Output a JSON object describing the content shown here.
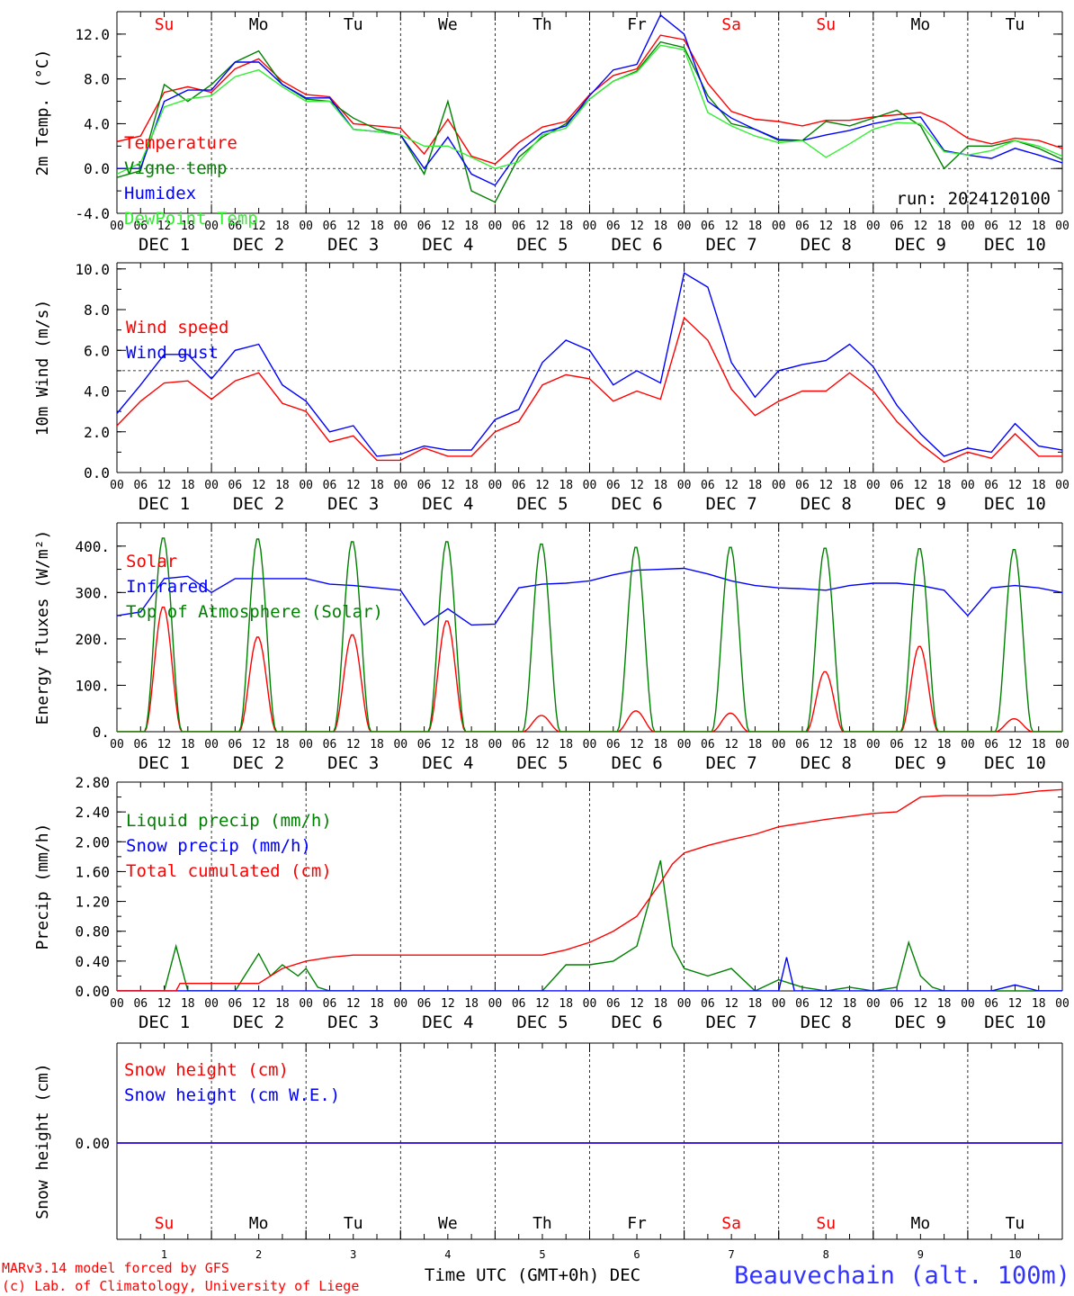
{
  "run_label": "run: 2024120100",
  "footer": {
    "model": "MARv3.14 model forced by GFS",
    "copyright": "(c) Lab. of Climatology, University of Liege",
    "xlabel": "Time UTC (GMT+0h) DEC",
    "station": "Beauvechain (alt. 100m)"
  },
  "x_axis": {
    "hour_ticks": [
      "00",
      "06",
      "12",
      "18"
    ],
    "date_labels": [
      "DEC  1",
      "DEC  2",
      "DEC  3",
      "DEC  4",
      "DEC  5",
      "DEC  6",
      "DEC  7",
      "DEC  8",
      "DEC  9",
      "DEC 10"
    ],
    "weekdays": [
      "Su",
      "Mo",
      "Tu",
      "We",
      "Th",
      "Fr",
      "Sa",
      "Su",
      "Mo",
      "Tu"
    ],
    "weekend_color": "#ff0000",
    "weekday_color": "#000000",
    "day_numbers": [
      "1",
      "2",
      "3",
      "4",
      "5",
      "6",
      "7",
      "8",
      "9",
      "10"
    ],
    "start": "2024-12-01 00:00 UTC",
    "end": "2024-12-11 00:00 UTC"
  },
  "chart_data": [
    {
      "type": "line",
      "ylabel": "2m Temp. (°C)",
      "ylim": [
        -4,
        14
      ],
      "yticks": [
        "-4.0",
        "0.0",
        "4.0",
        "8.0",
        "12.0"
      ],
      "ref_line": 0,
      "series": [
        {
          "name": "Temperature",
          "color": "#ff0000",
          "x": [
            0,
            6,
            12,
            18,
            24,
            30,
            36,
            42,
            48,
            54,
            60,
            66,
            72,
            78,
            84,
            90,
            96,
            102,
            108,
            114,
            120,
            126,
            132,
            138,
            144,
            150,
            156,
            162,
            168,
            174,
            180,
            186,
            192,
            198,
            204,
            210,
            216,
            222,
            228,
            234,
            240
          ],
          "y": [
            2.4,
            2.9,
            6.8,
            7.3,
            6.8,
            8.9,
            9.8,
            7.8,
            6.6,
            6.4,
            4.0,
            3.8,
            3.6,
            1.3,
            4.4,
            1.1,
            0.4,
            2.3,
            3.7,
            4.2,
            6.6,
            8.3,
            8.9,
            11.9,
            11.5,
            7.6,
            5.1,
            4.4,
            4.2,
            3.8,
            4.3,
            4.3,
            4.6,
            4.8,
            5.0,
            4.1,
            2.7,
            2.2,
            2.7,
            2.5,
            1.8
          ]
        },
        {
          "name": "Vigne temp",
          "color": "#008000",
          "x": [
            0,
            6,
            12,
            18,
            24,
            30,
            36,
            42,
            48,
            54,
            60,
            66,
            72,
            78,
            84,
            90,
            96,
            102,
            108,
            114,
            120,
            126,
            132,
            138,
            144,
            150,
            156,
            162,
            168,
            174,
            180,
            186,
            192,
            198,
            204,
            210,
            216,
            222,
            228,
            234,
            240
          ],
          "y": [
            -0.8,
            -0.2,
            7.5,
            6.0,
            7.5,
            9.5,
            10.5,
            7.5,
            6.2,
            6.0,
            4.5,
            3.5,
            3.0,
            -0.5,
            6.0,
            -2.0,
            -3.0,
            1.0,
            2.8,
            4.0,
            6.2,
            7.8,
            8.7,
            11.3,
            10.8,
            6.5,
            4.0,
            3.5,
            2.5,
            2.5,
            4.2,
            3.8,
            4.5,
            5.2,
            3.8,
            0.0,
            2.0,
            2.0,
            2.5,
            1.8,
            0.8
          ]
        },
        {
          "name": "Humidex",
          "color": "#0000ff",
          "x": [
            0,
            6,
            12,
            18,
            24,
            30,
            36,
            42,
            48,
            54,
            60,
            66,
            72,
            78,
            84,
            90,
            96,
            102,
            108,
            114,
            120,
            126,
            132,
            138,
            144,
            150,
            156,
            162,
            168,
            174,
            180,
            186,
            192,
            198,
            204,
            210,
            216,
            222,
            228,
            234,
            240
          ],
          "y": [
            0.0,
            0.0,
            6.0,
            7.0,
            7.0,
            9.5,
            9.5,
            7.5,
            6.3,
            6.3,
            3.5,
            3.3,
            3.0,
            0.0,
            2.8,
            -0.5,
            -1.5,
            1.5,
            3.2,
            3.8,
            6.5,
            8.8,
            9.3,
            13.7,
            12.0,
            6.0,
            4.5,
            3.5,
            2.6,
            2.5,
            3.0,
            3.4,
            4.0,
            4.4,
            4.6,
            1.6,
            1.2,
            0.9,
            1.8,
            1.2,
            0.5
          ]
        },
        {
          "name": "DewPoint Temp",
          "color": "#33ee33",
          "x": [
            0,
            6,
            12,
            18,
            24,
            30,
            36,
            42,
            48,
            54,
            60,
            66,
            72,
            78,
            84,
            90,
            96,
            102,
            108,
            114,
            120,
            126,
            132,
            138,
            144,
            150,
            156,
            162,
            168,
            174,
            180,
            186,
            192,
            198,
            204,
            210,
            216,
            222,
            228,
            234,
            240
          ],
          "y": [
            -0.5,
            0.5,
            5.5,
            6.2,
            6.5,
            8.2,
            8.8,
            7.3,
            6.0,
            6.0,
            3.5,
            3.3,
            3.0,
            2.0,
            2.0,
            1.0,
            0.0,
            0.6,
            3.0,
            3.6,
            6.2,
            7.8,
            8.6,
            11.0,
            10.6,
            5.0,
            3.8,
            2.9,
            2.3,
            2.5,
            1.0,
            2.2,
            3.5,
            4.1,
            4.0,
            1.5,
            1.2,
            1.6,
            2.5,
            2.0,
            1.1
          ]
        }
      ]
    },
    {
      "type": "line",
      "ylabel": "10m Wind (m/s)",
      "ylim": [
        0,
        10
      ],
      "yticks": [
        "0.0",
        "2.0",
        "4.0",
        "6.0",
        "8.0",
        "10.0"
      ],
      "ref_line": 5,
      "series": [
        {
          "name": "Wind speed",
          "color": "#ff0000",
          "x": [
            0,
            6,
            12,
            18,
            24,
            30,
            36,
            42,
            48,
            54,
            60,
            66,
            72,
            78,
            84,
            90,
            96,
            102,
            108,
            114,
            120,
            126,
            132,
            138,
            144,
            150,
            156,
            162,
            168,
            174,
            180,
            186,
            192,
            198,
            204,
            210,
            216,
            222,
            228,
            234,
            240
          ],
          "y": [
            2.3,
            3.5,
            4.4,
            4.5,
            3.6,
            4.5,
            4.9,
            3.4,
            3.0,
            1.5,
            1.8,
            0.6,
            0.6,
            1.2,
            0.8,
            0.8,
            2.0,
            2.5,
            4.3,
            4.8,
            4.6,
            3.5,
            4.0,
            3.6,
            7.6,
            6.5,
            4.1,
            2.8,
            3.5,
            4.0,
            4.0,
            4.9,
            4.0,
            2.5,
            1.4,
            0.5,
            1.0,
            0.7,
            1.9,
            0.8,
            0.8
          ]
        },
        {
          "name": "Wind gust",
          "color": "#0000ff",
          "x": [
            0,
            6,
            12,
            18,
            24,
            30,
            36,
            42,
            48,
            54,
            60,
            66,
            72,
            78,
            84,
            90,
            96,
            102,
            108,
            114,
            120,
            126,
            132,
            138,
            144,
            150,
            156,
            162,
            168,
            174,
            180,
            186,
            192,
            198,
            204,
            210,
            216,
            222,
            228,
            234,
            240
          ],
          "y": [
            2.9,
            4.3,
            5.8,
            5.8,
            4.6,
            6.0,
            6.3,
            4.3,
            3.5,
            2.0,
            2.3,
            0.8,
            0.9,
            1.3,
            1.1,
            1.1,
            2.6,
            3.1,
            5.4,
            6.5,
            6.0,
            4.3,
            5.0,
            4.4,
            9.8,
            9.1,
            5.4,
            3.7,
            5.0,
            5.3,
            5.5,
            6.3,
            5.2,
            3.3,
            1.9,
            0.8,
            1.2,
            1.0,
            2.4,
            1.3,
            1.1
          ]
        }
      ]
    },
    {
      "type": "line",
      "ylabel": "Energy fluxes (W/m²)",
      "ylim": [
        0,
        450
      ],
      "yticks": [
        "0.",
        "100.",
        "200.",
        "300.",
        "400."
      ],
      "series": [
        {
          "name": "Solar",
          "color": "#ff0000",
          "daily_peaks": [
            270,
            205,
            210,
            240,
            35,
            45,
            40,
            130,
            185,
            28
          ]
        },
        {
          "name": "Infrared",
          "color": "#0000ff",
          "x": [
            0,
            6,
            12,
            18,
            24,
            30,
            36,
            42,
            48,
            54,
            60,
            66,
            72,
            78,
            84,
            90,
            96,
            102,
            108,
            114,
            120,
            126,
            132,
            138,
            144,
            150,
            156,
            162,
            168,
            174,
            180,
            186,
            192,
            198,
            204,
            210,
            216,
            222,
            228,
            234,
            240
          ],
          "y": [
            250,
            258,
            330,
            335,
            300,
            330,
            330,
            330,
            330,
            318,
            315,
            310,
            305,
            230,
            265,
            230,
            232,
            310,
            318,
            320,
            325,
            338,
            348,
            350,
            352,
            340,
            325,
            315,
            310,
            308,
            305,
            315,
            320,
            320,
            315,
            305,
            250,
            310,
            315,
            310,
            300
          ]
        },
        {
          "name": "Top of Atmosphere (Solar)",
          "color": "#008000",
          "daily_peaks": [
            420,
            418,
            412,
            412,
            407,
            400,
            400,
            398,
            397,
            395
          ]
        }
      ]
    },
    {
      "type": "line",
      "ylabel": "Precip (mm/h)",
      "ylim": [
        0,
        2.8
      ],
      "yticks": [
        "0.00",
        "0.40",
        "0.80",
        "1.20",
        "1.60",
        "2.00",
        "2.40",
        "2.80"
      ],
      "series": [
        {
          "name": "Liquid precip (mm/h)",
          "color": "#008000",
          "x": [
            0,
            12,
            15,
            18,
            24,
            30,
            36,
            39,
            42,
            46,
            48,
            51,
            54,
            60,
            90,
            96,
            108,
            114,
            120,
            126,
            132,
            138,
            141,
            144,
            150,
            156,
            162,
            168,
            174,
            180,
            186,
            192,
            198,
            201,
            204,
            207,
            210,
            216,
            222,
            228,
            234,
            240
          ],
          "y": [
            0,
            0,
            0.6,
            0,
            0,
            0,
            0.5,
            0.2,
            0.35,
            0.2,
            0.3,
            0.05,
            0,
            0,
            0,
            0,
            0,
            0.35,
            0.35,
            0.4,
            0.6,
            1.75,
            0.6,
            0.3,
            0.2,
            0.3,
            0,
            0.15,
            0.05,
            0,
            0.05,
            0,
            0.05,
            0.65,
            0.2,
            0.05,
            0,
            0,
            0,
            0,
            0,
            0
          ]
        },
        {
          "name": "Snow precip (mm/h)",
          "color": "#0000ff",
          "x": [
            0,
            168,
            170,
            172,
            216,
            222,
            228,
            234,
            240
          ],
          "y": [
            0,
            0,
            0.45,
            0,
            0,
            0,
            0.08,
            0,
            0
          ]
        },
        {
          "name": "Total cumulated (cm)",
          "color": "#ff0000",
          "x": [
            0,
            15,
            16,
            36,
            42,
            48,
            54,
            60,
            108,
            114,
            120,
            126,
            132,
            138,
            141,
            144,
            150,
            156,
            162,
            168,
            180,
            192,
            198,
            204,
            210,
            216,
            222,
            228,
            234,
            240
          ],
          "y": [
            0,
            0,
            0.1,
            0.1,
            0.3,
            0.4,
            0.45,
            0.48,
            0.48,
            0.55,
            0.65,
            0.8,
            1.0,
            1.45,
            1.7,
            1.85,
            1.95,
            2.03,
            2.1,
            2.2,
            2.3,
            2.38,
            2.4,
            2.6,
            2.62,
            2.62,
            2.62,
            2.64,
            2.68,
            2.7
          ]
        }
      ]
    },
    {
      "type": "line",
      "ylabel": "Snow height (cm)",
      "yticks": [
        "0.00"
      ],
      "series": [
        {
          "name": "Snow height (cm)",
          "color": "#ff0000",
          "x": [
            0,
            240
          ],
          "y": [
            0,
            0
          ]
        },
        {
          "name": "Snow height (cm W.E.)",
          "color": "#0000ff",
          "x": [
            0,
            240
          ],
          "y": [
            0,
            0
          ]
        }
      ]
    }
  ]
}
